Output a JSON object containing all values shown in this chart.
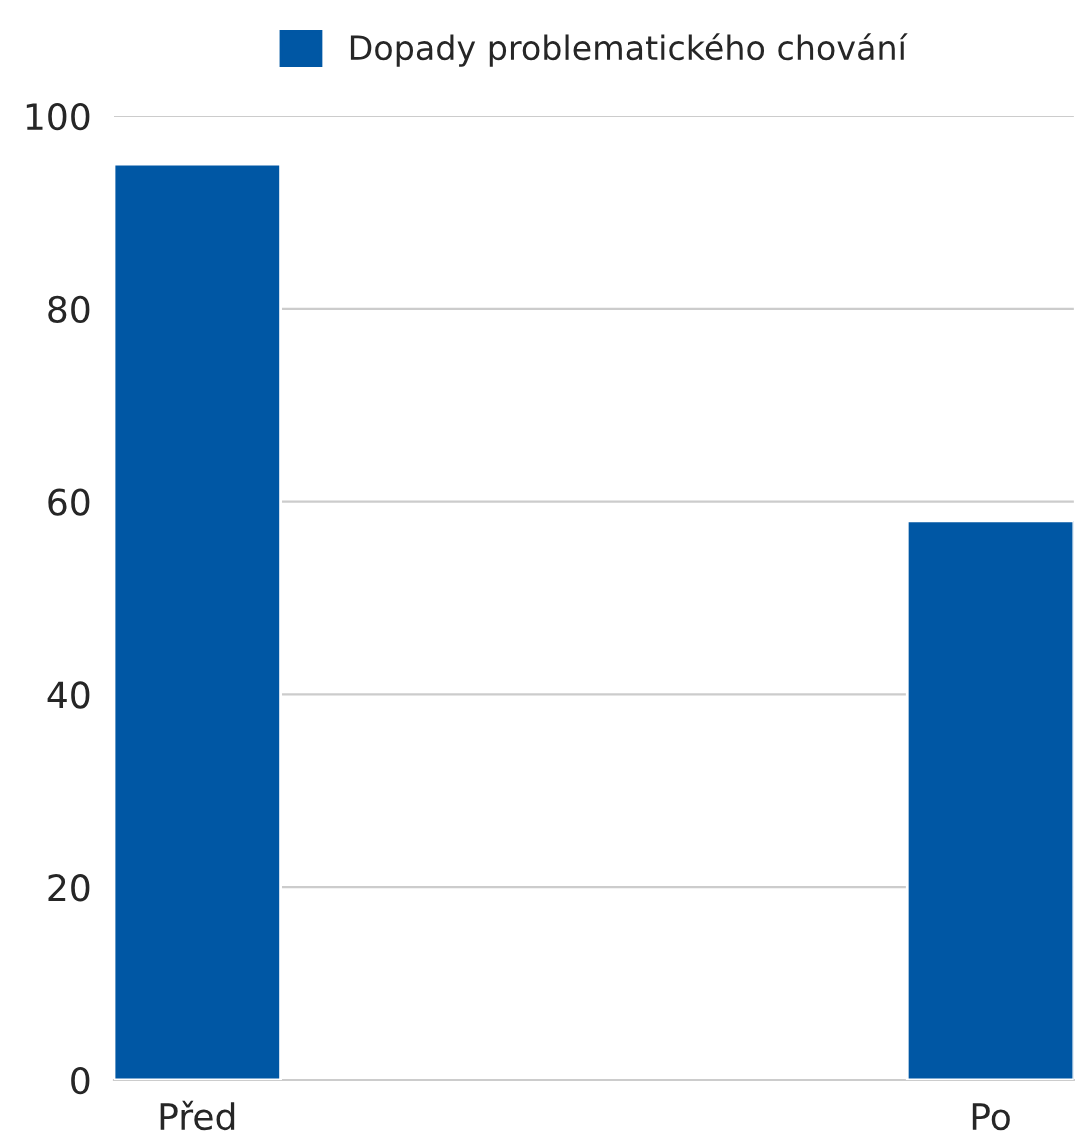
{
  "chart_data": {
    "type": "bar",
    "categories": [
      "Před",
      "Po"
    ],
    "series": [
      {
        "name": "Dopady problematického chování",
        "color": "#0057a4",
        "values": [
          95,
          58
        ]
      }
    ],
    "ylim": [
      0,
      100
    ],
    "yticks": [
      0,
      20,
      40,
      60,
      80,
      100
    ],
    "grid": "y",
    "legend": "top"
  }
}
